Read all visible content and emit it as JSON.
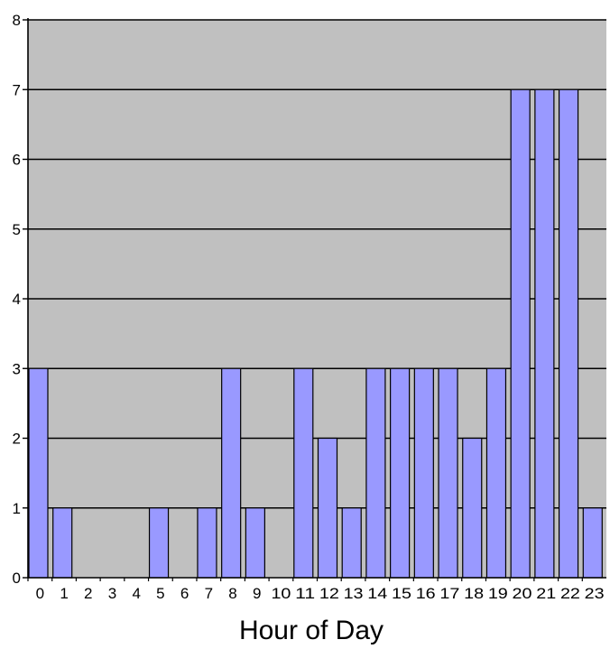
{
  "chart_data": {
    "type": "bar",
    "title": "",
    "xlabel": "Hour of Day",
    "ylabel": "",
    "categories": [
      "0",
      "1",
      "2",
      "3",
      "4",
      "5",
      "6",
      "7",
      "8",
      "9",
      "10",
      "11",
      "12",
      "13",
      "14",
      "15",
      "16",
      "17",
      "18",
      "19",
      "20",
      "21",
      "22",
      "23"
    ],
    "values": [
      3,
      1,
      0,
      0,
      0,
      1,
      0,
      1,
      3,
      1,
      0,
      3,
      2,
      1,
      3,
      3,
      3,
      3,
      2,
      3,
      7,
      7,
      7,
      1
    ],
    "ylim": [
      0,
      8
    ],
    "yticks": [
      "0",
      "1",
      "2",
      "3",
      "4",
      "5",
      "6",
      "7",
      "8"
    ],
    "grid": true,
    "legend": "none",
    "colors": {
      "plot_background": "#c0c0c0",
      "bar_fill": "#9999ff",
      "bar_stroke": "#000000",
      "gridline": "#000000",
      "axis": "#000000"
    }
  }
}
